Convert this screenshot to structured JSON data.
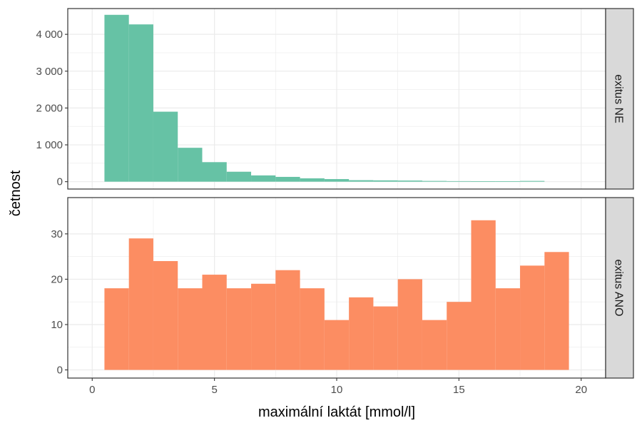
{
  "chart_data": {
    "type": "bar",
    "subtype": "faceted-histogram",
    "xlabel": "maximální laktát [mmol/l]",
    "ylabel": "četnost",
    "xlim": [
      -1,
      21
    ],
    "x_ticks": [
      {
        "value": 0,
        "label": "0"
      },
      {
        "value": 5,
        "label": "5"
      },
      {
        "value": 10,
        "label": "10"
      },
      {
        "value": 15,
        "label": "15"
      },
      {
        "value": 20,
        "label": "20"
      }
    ],
    "bin_width": 1,
    "bin_starts": [
      0.5,
      1.5,
      2.5,
      3.5,
      4.5,
      5.5,
      6.5,
      7.5,
      8.5,
      9.5,
      10.5,
      11.5,
      12.5,
      13.5,
      14.5,
      15.5,
      16.5,
      17.5,
      18.5
    ],
    "grid": true,
    "legend": "none",
    "panels": [
      {
        "strip_label": "exitus NE",
        "color": "#66c2a5",
        "ylim": [
          -200,
          4700
        ],
        "y_ticks": [
          {
            "value": 0,
            "label": "0"
          },
          {
            "value": 1000,
            "label": "1 000"
          },
          {
            "value": 2000,
            "label": "2 000"
          },
          {
            "value": 3000,
            "label": "3 000"
          },
          {
            "value": 4000,
            "label": "4 000"
          }
        ],
        "values": [
          4530,
          4270,
          1900,
          920,
          530,
          270,
          170,
          130,
          90,
          70,
          40,
          35,
          30,
          20,
          15,
          12,
          10,
          20,
          0
        ]
      },
      {
        "strip_label": "exitus ANO",
        "color": "#fc8d62",
        "ylim": [
          -1.8,
          38
        ],
        "y_ticks": [
          {
            "value": 0,
            "label": "0"
          },
          {
            "value": 10,
            "label": "10"
          },
          {
            "value": 20,
            "label": "20"
          },
          {
            "value": 30,
            "label": "30"
          }
        ],
        "values": [
          18,
          29,
          24,
          18,
          21,
          18,
          19,
          22,
          18,
          11,
          16,
          14,
          20,
          11,
          15,
          33,
          18,
          23,
          26
        ]
      }
    ]
  }
}
